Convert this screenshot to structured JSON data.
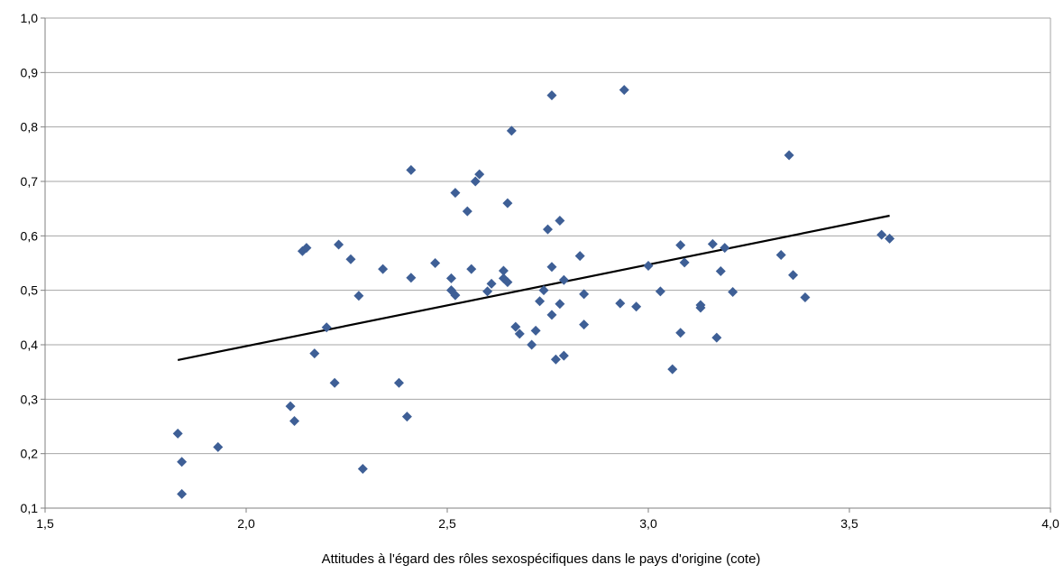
{
  "chart_data": {
    "type": "scatter",
    "title": "",
    "xlabel": "Attitudes à l'égard des rôles sexospécifiques dans le pays d'origine (cote)",
    "ylabel": "",
    "xlim": [
      1.5,
      4.0
    ],
    "ylim": [
      0.1,
      1.0
    ],
    "x_ticks": [
      1.5,
      2.0,
      2.5,
      3.0,
      3.5,
      4.0
    ],
    "x_tick_labels": [
      "1,5",
      "2,0",
      "2,5",
      "3,0",
      "3,5",
      "4,0"
    ],
    "y_ticks": [
      0.1,
      0.2,
      0.3,
      0.4,
      0.5,
      0.6,
      0.7,
      0.8,
      0.9,
      1.0
    ],
    "y_tick_labels": [
      "0,1",
      "0,2",
      "0,3",
      "0,4",
      "0,5",
      "0,6",
      "0,7",
      "0,8",
      "0,9",
      "1,0"
    ],
    "grid": "horizontal",
    "legend": "none",
    "marker": "diamond",
    "colors": {
      "points": "#3E5F96",
      "trendline": "#000000",
      "grid": "#A6A6A6",
      "axis": "#808080"
    },
    "trendline": {
      "x": [
        1.83,
        3.6
      ],
      "y": [
        0.372,
        0.637
      ]
    },
    "points": [
      {
        "x": 1.83,
        "y": 0.237
      },
      {
        "x": 1.84,
        "y": 0.185
      },
      {
        "x": 1.84,
        "y": 0.126
      },
      {
        "x": 1.93,
        "y": 0.212
      },
      {
        "x": 2.11,
        "y": 0.287
      },
      {
        "x": 2.12,
        "y": 0.26
      },
      {
        "x": 2.14,
        "y": 0.572
      },
      {
        "x": 2.15,
        "y": 0.578
      },
      {
        "x": 2.17,
        "y": 0.384
      },
      {
        "x": 2.2,
        "y": 0.432
      },
      {
        "x": 2.22,
        "y": 0.33
      },
      {
        "x": 2.23,
        "y": 0.584
      },
      {
        "x": 2.26,
        "y": 0.557
      },
      {
        "x": 2.28,
        "y": 0.49
      },
      {
        "x": 2.29,
        "y": 0.172
      },
      {
        "x": 2.34,
        "y": 0.539
      },
      {
        "x": 2.38,
        "y": 0.33
      },
      {
        "x": 2.4,
        "y": 0.268
      },
      {
        "x": 2.41,
        "y": 0.721
      },
      {
        "x": 2.41,
        "y": 0.523
      },
      {
        "x": 2.47,
        "y": 0.55
      },
      {
        "x": 2.51,
        "y": 0.522
      },
      {
        "x": 2.51,
        "y": 0.5
      },
      {
        "x": 2.52,
        "y": 0.491
      },
      {
        "x": 2.52,
        "y": 0.679
      },
      {
        "x": 2.55,
        "y": 0.645
      },
      {
        "x": 2.56,
        "y": 0.539
      },
      {
        "x": 2.57,
        "y": 0.7
      },
      {
        "x": 2.58,
        "y": 0.713
      },
      {
        "x": 2.6,
        "y": 0.498
      },
      {
        "x": 2.61,
        "y": 0.512
      },
      {
        "x": 2.64,
        "y": 0.536
      },
      {
        "x": 2.64,
        "y": 0.522
      },
      {
        "x": 2.65,
        "y": 0.515
      },
      {
        "x": 2.65,
        "y": 0.66
      },
      {
        "x": 2.66,
        "y": 0.793
      },
      {
        "x": 2.67,
        "y": 0.433
      },
      {
        "x": 2.68,
        "y": 0.42
      },
      {
        "x": 2.71,
        "y": 0.4
      },
      {
        "x": 2.72,
        "y": 0.426
      },
      {
        "x": 2.73,
        "y": 0.48
      },
      {
        "x": 2.74,
        "y": 0.5
      },
      {
        "x": 2.75,
        "y": 0.612
      },
      {
        "x": 2.76,
        "y": 0.858
      },
      {
        "x": 2.76,
        "y": 0.543
      },
      {
        "x": 2.76,
        "y": 0.455
      },
      {
        "x": 2.77,
        "y": 0.373
      },
      {
        "x": 2.78,
        "y": 0.628
      },
      {
        "x": 2.78,
        "y": 0.475
      },
      {
        "x": 2.79,
        "y": 0.519
      },
      {
        "x": 2.79,
        "y": 0.38
      },
      {
        "x": 2.83,
        "y": 0.563
      },
      {
        "x": 2.84,
        "y": 0.493
      },
      {
        "x": 2.84,
        "y": 0.437
      },
      {
        "x": 2.93,
        "y": 0.476
      },
      {
        "x": 2.94,
        "y": 0.868
      },
      {
        "x": 2.97,
        "y": 0.47
      },
      {
        "x": 3.0,
        "y": 0.545
      },
      {
        "x": 3.03,
        "y": 0.498
      },
      {
        "x": 3.06,
        "y": 0.355
      },
      {
        "x": 3.08,
        "y": 0.583
      },
      {
        "x": 3.08,
        "y": 0.422
      },
      {
        "x": 3.09,
        "y": 0.551
      },
      {
        "x": 3.13,
        "y": 0.473
      },
      {
        "x": 3.13,
        "y": 0.468
      },
      {
        "x": 3.16,
        "y": 0.585
      },
      {
        "x": 3.17,
        "y": 0.413
      },
      {
        "x": 3.18,
        "y": 0.535
      },
      {
        "x": 3.19,
        "y": 0.578
      },
      {
        "x": 3.21,
        "y": 0.497
      },
      {
        "x": 3.33,
        "y": 0.565
      },
      {
        "x": 3.35,
        "y": 0.748
      },
      {
        "x": 3.36,
        "y": 0.528
      },
      {
        "x": 3.39,
        "y": 0.487
      },
      {
        "x": 3.58,
        "y": 0.602
      },
      {
        "x": 3.6,
        "y": 0.595
      }
    ]
  }
}
